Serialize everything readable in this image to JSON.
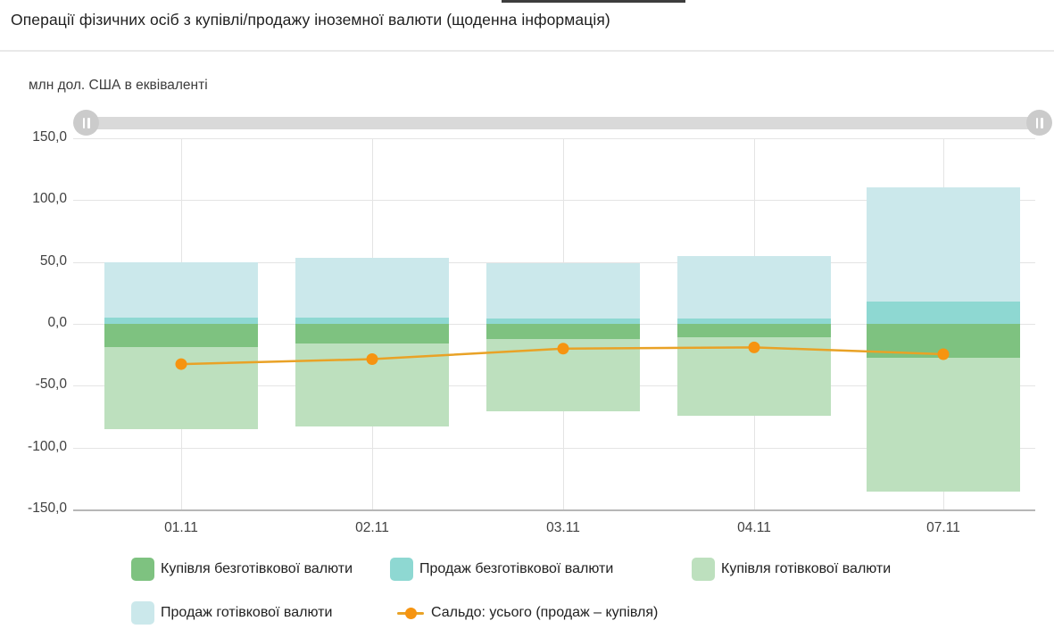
{
  "page": {
    "title": "Операції фізичних осіб з купівлі/продажу іноземної валюти (щоденна інформація)",
    "units_label": "млн дол. США в еквіваленті"
  },
  "slider": {
    "type": "horizontal-range",
    "left_handle": "range-start",
    "right_handle": "range-end"
  },
  "colors": {
    "buy_cashless": "#7ec280",
    "sell_cashless": "#8ed8d2",
    "buy_cash": "#bde0be",
    "sell_cash": "#cbe8eb",
    "saldo_line": "#e9a226",
    "saldo_point": "#f69410",
    "grid": "#e4e4e4",
    "axis": "#b7b7b7"
  },
  "chart_data": {
    "type": "bar",
    "subtype": "stacked-bar-with-line",
    "title": "Операції фізичних осіб з купівлі/продажу іноземної валюти (щоденна інформація)",
    "ylabel": "млн дол. США в еквіваленті",
    "xlabel": "",
    "grid": true,
    "legend_position": "bottom",
    "ylim": [
      -150,
      150
    ],
    "categories": [
      "01.11",
      "02.11",
      "03.11",
      "04.11",
      "07.11"
    ],
    "yticks": [
      {
        "label": "150,0",
        "value": 150
      },
      {
        "label": "100,0",
        "value": 100
      },
      {
        "label": "50,0",
        "value": 50
      },
      {
        "label": "0,0",
        "value": 0
      },
      {
        "label": "-50,0",
        "value": -50
      },
      {
        "label": "-100,0",
        "value": -100
      },
      {
        "label": "-150,0",
        "value": -150
      }
    ],
    "series": [
      {
        "key": "buy_cashless",
        "name": "Купівля безготівкової валюти",
        "type": "bar",
        "stack": "negative",
        "color": "#7ec280",
        "values": [
          -18.5,
          -16.0,
          -12.5,
          -11.0,
          -27.5
        ]
      },
      {
        "key": "sell_cashless",
        "name": "Продаж безготівкової валюти",
        "type": "bar",
        "stack": "positive",
        "color": "#8ed8d2",
        "values": [
          5.0,
          5.0,
          4.5,
          4.0,
          18.0
        ]
      },
      {
        "key": "buy_cash",
        "name": "Купівля готівкової валюти",
        "type": "bar",
        "stack": "negative",
        "color": "#bde0be",
        "values": [
          -66.5,
          -67.0,
          -58.0,
          -63.5,
          -108.0
        ]
      },
      {
        "key": "sell_cash",
        "name": "Продаж готівкової валюти",
        "type": "bar",
        "stack": "positive",
        "color": "#cbe8eb",
        "values": [
          45.0,
          48.5,
          44.5,
          50.5,
          92.5
        ]
      },
      {
        "key": "saldo",
        "name": "Сальдо: усього (продаж – купівля)",
        "type": "line",
        "color": "#e9a226",
        "point_color": "#f69410",
        "values": [
          -32.5,
          -28.5,
          -20.0,
          -19.0,
          -24.5
        ]
      }
    ]
  }
}
